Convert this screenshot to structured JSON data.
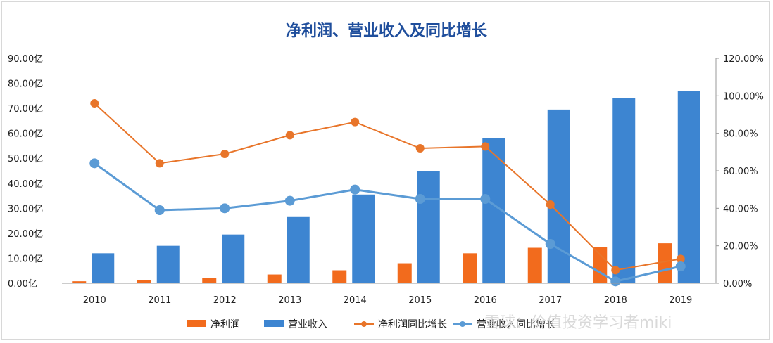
{
  "chart_data": {
    "type": "bar",
    "title": "净利润、营业收入及同比增长",
    "categories": [
      "2010",
      "2011",
      "2012",
      "2013",
      "2014",
      "2015",
      "2016",
      "2017",
      "2018",
      "2019"
    ],
    "y_left": {
      "ylim": [
        0,
        90
      ],
      "ticks": [
        "0.00亿",
        "10.00亿",
        "20.00亿",
        "30.00亿",
        "40.00亿",
        "50.00亿",
        "60.00亿",
        "70.00亿",
        "80.00亿",
        "90.00亿"
      ]
    },
    "y_right": {
      "ylim": [
        0,
        120
      ],
      "ticks": [
        "0.00%",
        "20.00%",
        "40.00%",
        "60.00%",
        "80.00%",
        "100.00%",
        "120.00%"
      ]
    },
    "series": [
      {
        "name": "净利润",
        "kind": "bar",
        "axis": "left",
        "color": "#f26b1d",
        "values": [
          0.8,
          1.2,
          2.2,
          3.5,
          5.2,
          8.0,
          12.0,
          14.2,
          14.5,
          16.0
        ]
      },
      {
        "name": "营业收入",
        "kind": "bar",
        "axis": "left",
        "color": "#3d85d1",
        "values": [
          12.0,
          15.0,
          19.5,
          26.5,
          35.5,
          45.0,
          58.0,
          69.5,
          74.0,
          77.0
        ]
      },
      {
        "name": "净利润同比增长",
        "kind": "line",
        "axis": "right",
        "color": "#e8752a",
        "values": [
          96,
          64,
          69,
          79,
          86,
          72,
          73,
          42,
          7,
          13
        ]
      },
      {
        "name": "营业收入同比增长",
        "kind": "line",
        "axis": "right",
        "color": "#5b9bd5",
        "values": [
          64,
          39,
          40,
          44,
          50,
          45,
          45,
          21,
          1,
          9
        ]
      }
    ],
    "legend_position": "bottom",
    "grid": false
  },
  "legend": {
    "items": [
      "净利润",
      "营业收入",
      "净利润同比增长",
      "营业收入同比增长"
    ]
  },
  "watermark": "雪球：价值投资学习者miki"
}
